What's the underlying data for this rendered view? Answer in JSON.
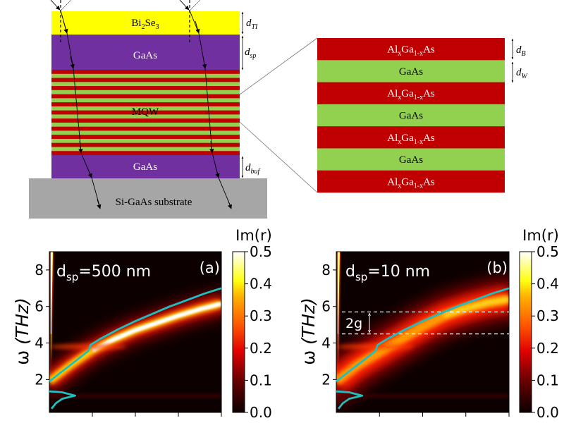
{
  "schematic": {
    "stack_layers": [
      {
        "key": "ti",
        "label": "Bi2Se3",
        "label_main": "Bi",
        "label_sub1": "2",
        "label_mid": "Se",
        "label_sub2": "3",
        "color": "#ffff00",
        "text_color": "#000000",
        "dim": "d",
        "dim_sub": "TI"
      },
      {
        "key": "spacer",
        "label": "GaAs",
        "color": "#7030a0",
        "text_color": "#ffffff",
        "dim": "d",
        "dim_sub": "sp"
      },
      {
        "key": "mqw",
        "label": "MQW",
        "color_barrier": "#c00000",
        "color_well": "#92d050",
        "text_color": "#000000",
        "stripes": 21
      },
      {
        "key": "buffer",
        "label": "GaAs",
        "color": "#7030a0",
        "text_color": "#ffffff",
        "dim": "d",
        "dim_sub": "buf"
      },
      {
        "key": "substrate",
        "label": "Si-GaAs substrate",
        "color": "#a6a6a6",
        "text_color": "#000000"
      }
    ],
    "zoom_layers": [
      {
        "label": "AlxGa1-xAs",
        "type": "barrier",
        "color": "#c00000",
        "text_color": "#ffffff"
      },
      {
        "label": "GaAs",
        "type": "well",
        "color": "#92d050",
        "text_color": "#000000"
      },
      {
        "label": "AlxGa1-xAs",
        "type": "barrier",
        "color": "#c00000",
        "text_color": "#ffffff"
      },
      {
        "label": "GaAs",
        "type": "well",
        "color": "#92d050",
        "text_color": "#000000"
      },
      {
        "label": "AlxGa1-xAs",
        "type": "barrier",
        "color": "#c00000",
        "text_color": "#ffffff"
      },
      {
        "label": "GaAs",
        "type": "well",
        "color": "#92d050",
        "text_color": "#000000"
      },
      {
        "label": "AlxGa1-xAs",
        "type": "barrier",
        "color": "#c00000",
        "text_color": "#ffffff"
      }
    ],
    "zoom_dims": [
      {
        "dim": "d",
        "dim_sub": "B"
      },
      {
        "dim": "d",
        "dim_sub": "W"
      }
    ],
    "algaas": {
      "a": "Al",
      "x": "x",
      "b": "Ga",
      "c": "1-x",
      "d": "As"
    }
  },
  "chart_data": [
    {
      "type": "heatmap",
      "panel": "(a)",
      "annotation": "d_sp=500 nm",
      "annotation_main": "d",
      "annotation_sub": "sp",
      "annotation_rest": "=500 nm",
      "ylabel": "ω (THz)",
      "ylabel_main": "ω",
      "ylabel_rest": "(THz)",
      "ylim": [
        0.2,
        9.0
      ],
      "yticks": [
        2,
        4,
        6,
        8
      ],
      "xlim": [
        0,
        4
      ],
      "xticks": [
        1,
        2,
        3,
        4
      ],
      "xticklabels_visible": false,
      "colorbar": {
        "label": "Im(r)",
        "range": [
          0.0,
          0.5
        ],
        "ticks": [
          "0.0",
          "0.1",
          "0.2",
          "0.3",
          "0.4",
          "0.5"
        ],
        "colormap": "hot"
      },
      "dispersion_curve": {
        "color": "#1fbfbf",
        "x": [
          0,
          0.3,
          0.6,
          0.9,
          0.93,
          0.96,
          1.2,
          1.6,
          2.0,
          2.4,
          2.8,
          3.2,
          3.6,
          4.0
        ],
        "y": [
          1.9,
          2.45,
          3.0,
          3.55,
          3.7,
          3.9,
          4.25,
          4.75,
          5.2,
          5.6,
          6.0,
          6.35,
          6.7,
          7.0
        ]
      },
      "low_branch": {
        "x": [
          0.0,
          0.15,
          0.3,
          0.6,
          0.3,
          0.15,
          0.05
        ],
        "y": [
          1.35,
          1.33,
          1.3,
          1.12,
          0.95,
          0.7,
          0.4
        ]
      },
      "bright_band": {
        "x": [
          0,
          0.5,
          1.0,
          1.5,
          2.0,
          2.5,
          3.0,
          3.5,
          4.0
        ],
        "y": [
          1.9,
          2.8,
          3.6,
          4.2,
          4.7,
          5.1,
          5.5,
          5.85,
          6.15
        ],
        "peak": 0.5
      },
      "light_line_peak": 0.5
    },
    {
      "type": "heatmap",
      "panel": "(b)",
      "annotation": "d_sp=10 nm",
      "annotation_main": "d",
      "annotation_sub": "sp",
      "annotation_rest": "=10 nm",
      "ylabel": "ω (THz)",
      "ylabel_main": "ω",
      "ylabel_rest": "(THz)",
      "ylim": [
        0.2,
        9.0
      ],
      "yticks": [
        2,
        4,
        6,
        8
      ],
      "xlim": [
        0,
        4
      ],
      "xticks": [
        1,
        2,
        3,
        4
      ],
      "xticklabels_visible": false,
      "colorbar": {
        "label": "Im(r)",
        "range": [
          0.0,
          0.5
        ],
        "ticks": [
          "0.0",
          "0.1",
          "0.2",
          "0.3",
          "0.4",
          "0.5"
        ],
        "colormap": "hot"
      },
      "dispersion_curve": {
        "color": "#1fbfbf",
        "x": [
          0,
          0.3,
          0.6,
          0.9,
          0.93,
          0.96,
          1.2,
          1.6,
          2.0,
          2.4,
          2.8,
          3.2,
          3.6,
          4.0
        ],
        "y": [
          1.9,
          2.45,
          3.0,
          3.55,
          3.7,
          3.9,
          4.25,
          4.75,
          5.2,
          5.6,
          6.0,
          6.35,
          6.7,
          7.0
        ]
      },
      "low_branch": {
        "x": [
          0.0,
          0.15,
          0.3,
          0.6,
          0.3,
          0.15,
          0.05
        ],
        "y": [
          1.35,
          1.33,
          1.3,
          1.12,
          0.95,
          0.7,
          0.4
        ]
      },
      "bright_band": {
        "x": [
          0,
          0.5,
          1.0,
          1.5,
          2.0,
          2.5,
          3.0,
          3.5,
          4.0
        ],
        "y": [
          1.9,
          2.8,
          3.5,
          4.2,
          4.9,
          5.5,
          5.9,
          6.2,
          6.4
        ],
        "peak": 0.32
      },
      "gap_lines": {
        "y": [
          5.7,
          4.5
        ],
        "label": "2g"
      },
      "light_line_peak": 0.5
    }
  ]
}
